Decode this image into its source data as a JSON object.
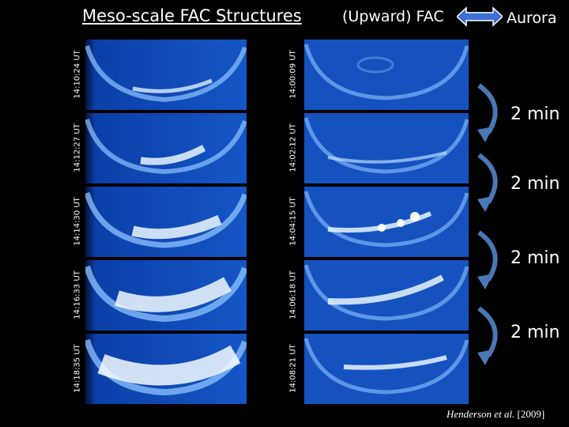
{
  "title": "Meso-scale FAC Structures",
  "header": {
    "fac_label": "(Upward) FAC",
    "aurora_label": "Aurora"
  },
  "left_timestamps": [
    "14:10:24 UT",
    "14:12:27 UT",
    "14:14:30 UT",
    "14:16:33 UT",
    "14:18:35 UT"
  ],
  "right_timestamps": [
    "14:00:09 UT",
    "14:02:12 UT",
    "14:04:15 UT",
    "14:06:18 UT",
    "14:08:21 UT"
  ],
  "step_labels": [
    "2 min",
    "2 min",
    "2 min",
    "2 min"
  ],
  "credit": {
    "authors": "Henderson",
    "etal": "et al.",
    "year": "[2009]"
  },
  "colors": {
    "panel_bg": "#0b3fa8",
    "arc": "#9fd0ff",
    "arrow": "#4a78b5"
  }
}
